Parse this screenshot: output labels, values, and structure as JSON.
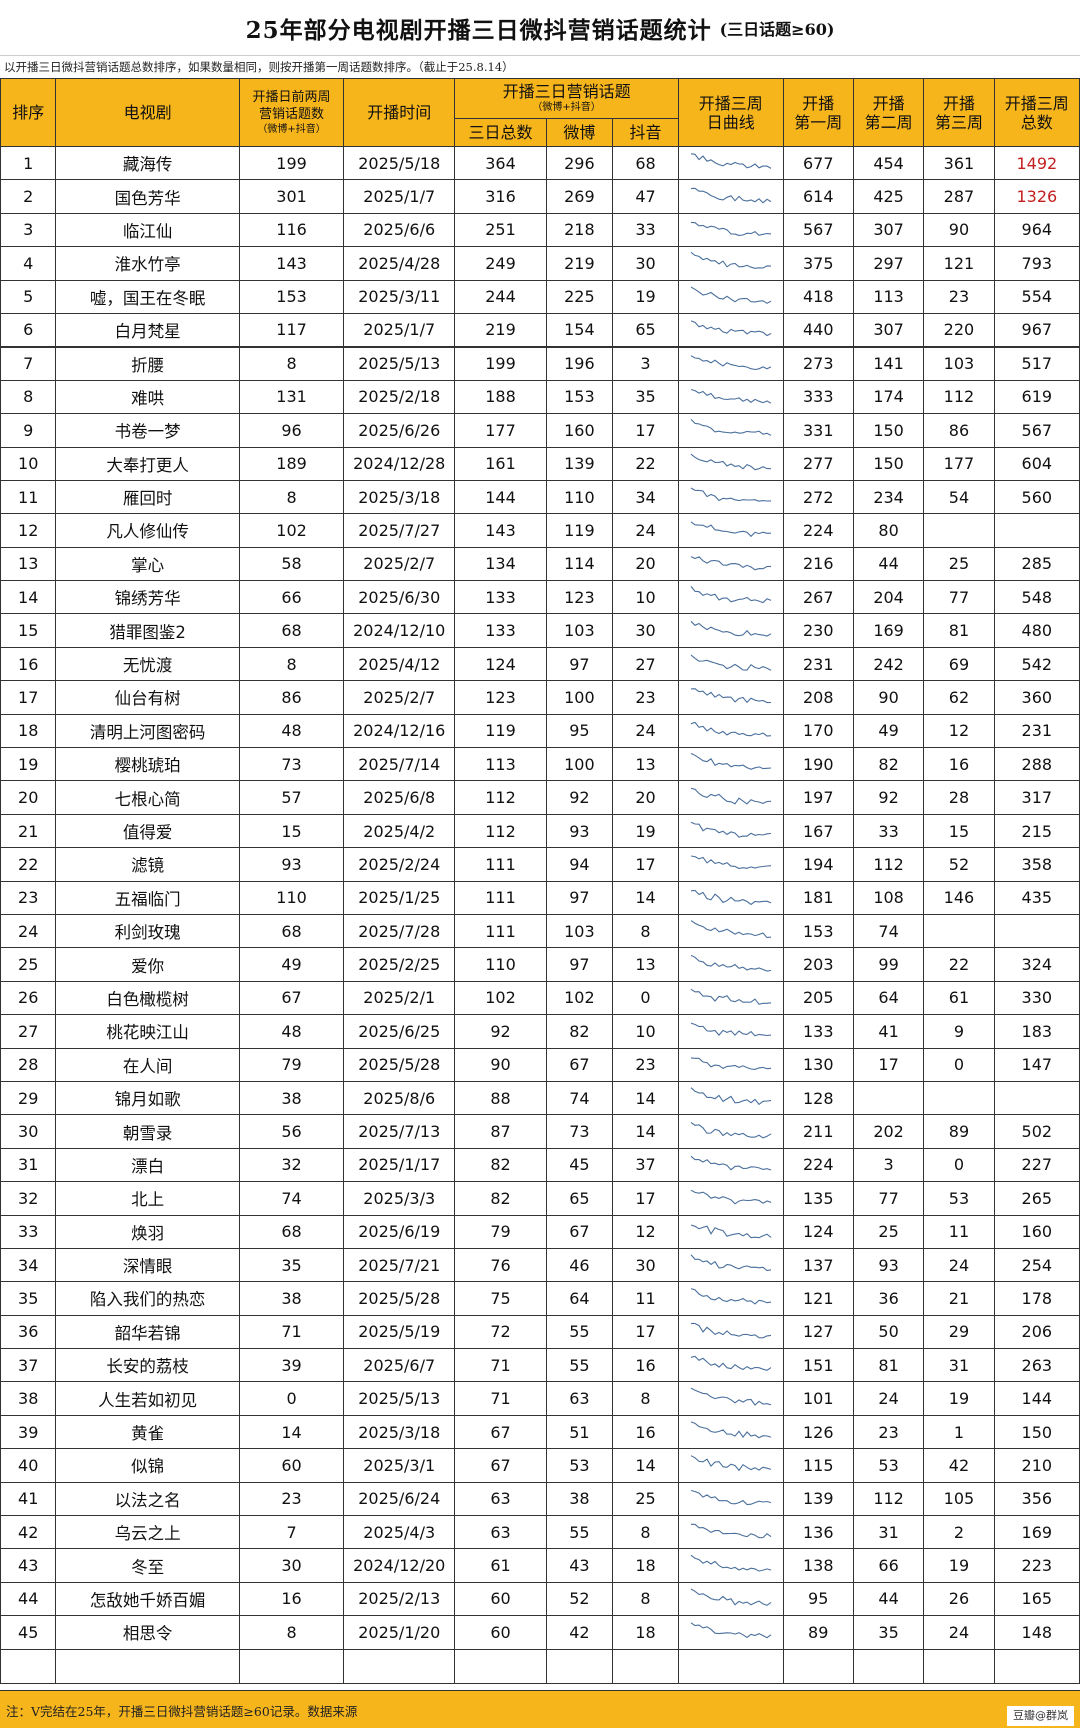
{
  "header": {
    "title": "25年部分电视剧开播三日微抖营销话题统计",
    "subtitle": "(三日话题≥60)",
    "note_top": "以开播三日微抖营销话题总数排序，如果数量相同，则按开播第一周话题数排序。（截止于25.8.14）"
  },
  "columns": {
    "rank": "排序",
    "drama": "电视剧",
    "pre_line1": "开播日前两周",
    "pre_line2": "营销话题数",
    "pre_line3": "（微博+抖音）",
    "date": "开播时间",
    "three_day_group": "开播三日营销话题",
    "three_day_group_sub": "（微博+抖音）",
    "three_total": "三日总数",
    "weibo": "微博",
    "douyin": "抖音",
    "curve_line1": "开播三周",
    "curve_line2": "日曲线",
    "w1_line1": "开播",
    "w1_line2": "第一周",
    "w2_line1": "开播",
    "w2_line2": "第二周",
    "w3_line1": "开播",
    "w3_line2": "第三周",
    "total_line1": "开播三周",
    "total_line2": "总数"
  },
  "rows": [
    {
      "rank": "1",
      "name": "藏海传",
      "pre": "199",
      "date": "2025/5/18",
      "tot3": "364",
      "weibo": "296",
      "douyin": "68",
      "w1": "677",
      "w2": "454",
      "w3": "361",
      "total": "1492"
    },
    {
      "rank": "2",
      "name": "国色芳华",
      "pre": "301",
      "date": "2025/1/7",
      "tot3": "316",
      "weibo": "269",
      "douyin": "47",
      "w1": "614",
      "w2": "425",
      "w3": "287",
      "total": "1326"
    },
    {
      "rank": "3",
      "name": "临江仙",
      "pre": "116",
      "date": "2025/6/6",
      "tot3": "251",
      "weibo": "218",
      "douyin": "33",
      "w1": "567",
      "w2": "307",
      "w3": "90",
      "total": "964"
    },
    {
      "rank": "4",
      "name": "淮水竹亭",
      "pre": "143",
      "date": "2025/4/28",
      "tot3": "249",
      "weibo": "219",
      "douyin": "30",
      "w1": "375",
      "w2": "297",
      "w3": "121",
      "total": "793"
    },
    {
      "rank": "5",
      "name": "嘘，国王在冬眠",
      "pre": "153",
      "date": "2025/3/11",
      "tot3": "244",
      "weibo": "225",
      "douyin": "19",
      "w1": "418",
      "w2": "113",
      "w3": "23",
      "total": "554"
    },
    {
      "rank": "6",
      "name": "白月梵星",
      "pre": "117",
      "date": "2025/1/7",
      "tot3": "219",
      "weibo": "154",
      "douyin": "65",
      "w1": "440",
      "w2": "307",
      "w3": "220",
      "total": "967"
    },
    {
      "rank": "7",
      "name": "折腰",
      "pre": "8",
      "date": "2025/5/13",
      "tot3": "199",
      "weibo": "196",
      "douyin": "3",
      "w1": "273",
      "w2": "141",
      "w3": "103",
      "total": "517"
    },
    {
      "rank": "8",
      "name": "难哄",
      "pre": "131",
      "date": "2025/2/18",
      "tot3": "188",
      "weibo": "153",
      "douyin": "35",
      "w1": "333",
      "w2": "174",
      "w3": "112",
      "total": "619"
    },
    {
      "rank": "9",
      "name": "书卷一梦",
      "pre": "96",
      "date": "2025/6/26",
      "tot3": "177",
      "weibo": "160",
      "douyin": "17",
      "w1": "331",
      "w2": "150",
      "w3": "86",
      "total": "567"
    },
    {
      "rank": "10",
      "name": "大奉打更人",
      "pre": "189",
      "date": "2024/12/28",
      "tot3": "161",
      "weibo": "139",
      "douyin": "22",
      "w1": "277",
      "w2": "150",
      "w3": "177",
      "total": "604"
    },
    {
      "rank": "11",
      "name": "雁回时",
      "pre": "8",
      "date": "2025/3/18",
      "tot3": "144",
      "weibo": "110",
      "douyin": "34",
      "w1": "272",
      "w2": "234",
      "w3": "54",
      "total": "560"
    },
    {
      "rank": "12",
      "name": "凡人修仙传",
      "pre": "102",
      "date": "2025/7/27",
      "tot3": "143",
      "weibo": "119",
      "douyin": "24",
      "w1": "224",
      "w2": "80",
      "w3": "",
      "total": ""
    },
    {
      "rank": "13",
      "name": "掌心",
      "pre": "58",
      "date": "2025/2/7",
      "tot3": "134",
      "weibo": "114",
      "douyin": "20",
      "w1": "216",
      "w2": "44",
      "w3": "25",
      "total": "285"
    },
    {
      "rank": "14",
      "name": "锦绣芳华",
      "pre": "66",
      "date": "2025/6/30",
      "tot3": "133",
      "weibo": "123",
      "douyin": "10",
      "w1": "267",
      "w2": "204",
      "w3": "77",
      "total": "548"
    },
    {
      "rank": "15",
      "name": "猎罪图鉴2",
      "pre": "68",
      "date": "2024/12/10",
      "tot3": "133",
      "weibo": "103",
      "douyin": "30",
      "w1": "230",
      "w2": "169",
      "w3": "81",
      "total": "480"
    },
    {
      "rank": "16",
      "name": "无忧渡",
      "pre": "8",
      "date": "2025/4/12",
      "tot3": "124",
      "weibo": "97",
      "douyin": "27",
      "w1": "231",
      "w2": "242",
      "w3": "69",
      "total": "542"
    },
    {
      "rank": "17",
      "name": "仙台有树",
      "pre": "86",
      "date": "2025/2/7",
      "tot3": "123",
      "weibo": "100",
      "douyin": "23",
      "w1": "208",
      "w2": "90",
      "w3": "62",
      "total": "360"
    },
    {
      "rank": "18",
      "name": "清明上河图密码",
      "pre": "48",
      "date": "2024/12/16",
      "tot3": "119",
      "weibo": "95",
      "douyin": "24",
      "w1": "170",
      "w2": "49",
      "w3": "12",
      "total": "231"
    },
    {
      "rank": "19",
      "name": "樱桃琥珀",
      "pre": "73",
      "date": "2025/7/14",
      "tot3": "113",
      "weibo": "100",
      "douyin": "13",
      "w1": "190",
      "w2": "82",
      "w3": "16",
      "total": "288"
    },
    {
      "rank": "20",
      "name": "七根心简",
      "pre": "57",
      "date": "2025/6/8",
      "tot3": "112",
      "weibo": "92",
      "douyin": "20",
      "w1": "197",
      "w2": "92",
      "w3": "28",
      "total": "317"
    },
    {
      "rank": "21",
      "name": "值得爱",
      "pre": "15",
      "date": "2025/4/2",
      "tot3": "112",
      "weibo": "93",
      "douyin": "19",
      "w1": "167",
      "w2": "33",
      "w3": "15",
      "total": "215"
    },
    {
      "rank": "22",
      "name": "滤镜",
      "pre": "93",
      "date": "2025/2/24",
      "tot3": "111",
      "weibo": "94",
      "douyin": "17",
      "w1": "194",
      "w2": "112",
      "w3": "52",
      "total": "358"
    },
    {
      "rank": "23",
      "name": "五福临门",
      "pre": "110",
      "date": "2025/1/25",
      "tot3": "111",
      "weibo": "97",
      "douyin": "14",
      "w1": "181",
      "w2": "108",
      "w3": "146",
      "total": "435"
    },
    {
      "rank": "24",
      "name": "利剑玫瑰",
      "pre": "68",
      "date": "2025/7/28",
      "tot3": "111",
      "weibo": "103",
      "douyin": "8",
      "w1": "153",
      "w2": "74",
      "w3": "",
      "total": ""
    },
    {
      "rank": "25",
      "name": "爱你",
      "pre": "49",
      "date": "2025/2/25",
      "tot3": "110",
      "weibo": "97",
      "douyin": "13",
      "w1": "203",
      "w2": "99",
      "w3": "22",
      "total": "324"
    },
    {
      "rank": "26",
      "name": "白色橄榄树",
      "pre": "67",
      "date": "2025/2/1",
      "tot3": "102",
      "weibo": "102",
      "douyin": "0",
      "w1": "205",
      "w2": "64",
      "w3": "61",
      "total": "330"
    },
    {
      "rank": "27",
      "name": "桃花映江山",
      "pre": "48",
      "date": "2025/6/25",
      "tot3": "92",
      "weibo": "82",
      "douyin": "10",
      "w1": "133",
      "w2": "41",
      "w3": "9",
      "total": "183"
    },
    {
      "rank": "28",
      "name": "在人间",
      "pre": "79",
      "date": "2025/5/28",
      "tot3": "90",
      "weibo": "67",
      "douyin": "23",
      "w1": "130",
      "w2": "17",
      "w3": "0",
      "total": "147"
    },
    {
      "rank": "29",
      "name": "锦月如歌",
      "pre": "38",
      "date": "2025/8/6",
      "tot3": "88",
      "weibo": "74",
      "douyin": "14",
      "w1": "128",
      "w2": "",
      "w3": "",
      "total": ""
    },
    {
      "rank": "30",
      "name": "朝雪录",
      "pre": "56",
      "date": "2025/7/13",
      "tot3": "87",
      "weibo": "73",
      "douyin": "14",
      "w1": "211",
      "w2": "202",
      "w3": "89",
      "total": "502"
    },
    {
      "rank": "31",
      "name": "漂白",
      "pre": "32",
      "date": "2025/1/17",
      "tot3": "82",
      "weibo": "45",
      "douyin": "37",
      "w1": "224",
      "w2": "3",
      "w3": "0",
      "total": "227"
    },
    {
      "rank": "32",
      "name": "北上",
      "pre": "74",
      "date": "2025/3/3",
      "tot3": "82",
      "weibo": "65",
      "douyin": "17",
      "w1": "135",
      "w2": "77",
      "w3": "53",
      "total": "265"
    },
    {
      "rank": "33",
      "name": "焕羽",
      "pre": "68",
      "date": "2025/6/19",
      "tot3": "79",
      "weibo": "67",
      "douyin": "12",
      "w1": "124",
      "w2": "25",
      "w3": "11",
      "total": "160"
    },
    {
      "rank": "34",
      "name": "深情眼",
      "pre": "35",
      "date": "2025/7/21",
      "tot3": "76",
      "weibo": "46",
      "douyin": "30",
      "w1": "137",
      "w2": "93",
      "w3": "24",
      "total": "254"
    },
    {
      "rank": "35",
      "name": "陷入我们的热恋",
      "pre": "38",
      "date": "2025/5/28",
      "tot3": "75",
      "weibo": "64",
      "douyin": "11",
      "w1": "121",
      "w2": "36",
      "w3": "21",
      "total": "178"
    },
    {
      "rank": "36",
      "name": "韶华若锦",
      "pre": "71",
      "date": "2025/5/19",
      "tot3": "72",
      "weibo": "55",
      "douyin": "17",
      "w1": "127",
      "w2": "50",
      "w3": "29",
      "total": "206"
    },
    {
      "rank": "37",
      "name": "长安的荔枝",
      "pre": "39",
      "date": "2025/6/7",
      "tot3": "71",
      "weibo": "55",
      "douyin": "16",
      "w1": "151",
      "w2": "81",
      "w3": "31",
      "total": "263"
    },
    {
      "rank": "38",
      "name": "人生若如初见",
      "pre": "0",
      "date": "2025/5/13",
      "tot3": "71",
      "weibo": "63",
      "douyin": "8",
      "w1": "101",
      "w2": "24",
      "w3": "19",
      "total": "144"
    },
    {
      "rank": "39",
      "name": "黄雀",
      "pre": "14",
      "date": "2025/3/18",
      "tot3": "67",
      "weibo": "51",
      "douyin": "16",
      "w1": "126",
      "w2": "23",
      "w3": "1",
      "total": "150"
    },
    {
      "rank": "40",
      "name": "似锦",
      "pre": "60",
      "date": "2025/3/1",
      "tot3": "67",
      "weibo": "53",
      "douyin": "14",
      "w1": "115",
      "w2": "53",
      "w3": "42",
      "total": "210"
    },
    {
      "rank": "41",
      "name": "以法之名",
      "pre": "23",
      "date": "2025/6/24",
      "tot3": "63",
      "weibo": "38",
      "douyin": "25",
      "w1": "139",
      "w2": "112",
      "w3": "105",
      "total": "356"
    },
    {
      "rank": "42",
      "name": "乌云之上",
      "pre": "7",
      "date": "2025/4/3",
      "tot3": "63",
      "weibo": "55",
      "douyin": "8",
      "w1": "136",
      "w2": "31",
      "w3": "2",
      "total": "169"
    },
    {
      "rank": "43",
      "name": "冬至",
      "pre": "30",
      "date": "2024/12/20",
      "tot3": "61",
      "weibo": "43",
      "douyin": "18",
      "w1": "138",
      "w2": "66",
      "w3": "19",
      "total": "223"
    },
    {
      "rank": "44",
      "name": "怎敌她千娇百媚",
      "pre": "16",
      "date": "2025/2/13",
      "tot3": "60",
      "weibo": "52",
      "douyin": "8",
      "w1": "95",
      "w2": "44",
      "w3": "26",
      "total": "165"
    },
    {
      "rank": "45",
      "name": "相思令",
      "pre": "8",
      "date": "2025/1/20",
      "tot3": "60",
      "weibo": "42",
      "douyin": "18",
      "w1": "89",
      "w2": "35",
      "w3": "24",
      "total": "148"
    }
  ],
  "footer": {
    "note": "注：V完结在25年，开播三日微抖营销话题≥60记录。数据来源",
    "credit": "豆瓣@群岚"
  },
  "colors": {
    "header_bg": "#f7b51c",
    "highlight": "#c42020",
    "sparkline": "#4a6f9c"
  }
}
